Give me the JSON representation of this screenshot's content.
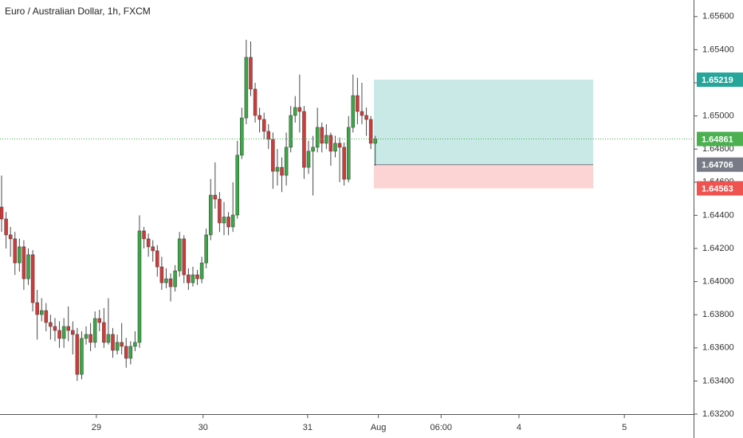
{
  "chart_data": {
    "type": "candlestick",
    "title": "Euro / Australian Dollar, 1h, FXCM",
    "x": [
      0,
      1,
      2,
      3,
      4,
      5,
      6,
      7,
      8,
      9,
      10,
      11,
      12,
      13,
      14,
      15,
      16,
      17,
      18,
      19,
      20,
      21,
      22,
      23,
      24,
      25,
      26,
      27,
      28,
      29,
      30,
      31,
      32,
      33,
      34,
      35,
      36,
      37,
      38,
      39,
      40,
      41,
      42,
      43,
      44,
      45,
      46,
      47,
      48,
      49,
      50,
      51,
      52,
      53,
      54,
      55,
      56,
      57,
      58,
      59,
      60,
      61,
      62,
      63,
      64,
      65,
      66,
      67,
      68,
      69,
      70,
      71,
      72,
      73,
      74,
      75,
      76,
      77,
      78,
      79,
      80,
      81,
      82,
      83,
      84
    ],
    "open": [
      1.6445,
      1.64378,
      1.64282,
      1.64258,
      1.64113,
      1.6421,
      1.64017,
      1.64162,
      1.63873,
      1.63801,
      1.63825,
      1.63753,
      1.63729,
      1.63705,
      1.63657,
      1.63729,
      1.63705,
      1.63681,
      1.6344,
      1.63657,
      1.63681,
      1.63633,
      1.63777,
      1.63753,
      1.63633,
      1.63681,
      1.63585,
      1.63633,
      1.63609,
      1.63537,
      1.63609,
      1.63633,
      1.64306,
      1.64258,
      1.6421,
      1.64186,
      1.64089,
      1.63993,
      1.64017,
      1.63969,
      1.64065,
      1.64258,
      1.64041,
      1.63993,
      1.64041,
      1.64017,
      1.64113,
      1.64282,
      1.64522,
      1.64498,
      1.64354,
      1.6439,
      1.6433,
      1.64402,
      1.64763,
      1.64988,
      1.65354,
      1.65162,
      1.65003,
      1.64979,
      1.64907,
      1.64859,
      1.64666,
      1.6469,
      1.64642,
      1.64811,
      1.65003,
      1.65051,
      1.65027,
      1.6469,
      1.64787,
      1.64811,
      1.64931,
      1.64835,
      1.64883,
      1.64787,
      1.64835,
      1.64811,
      1.64618,
      1.64931,
      1.65123,
      1.65027,
      1.65003,
      1.64979,
      1.64835
    ],
    "high": [
      1.6464,
      1.6442,
      1.6433,
      1.643,
      1.6426,
      1.6425,
      1.642,
      1.6419,
      1.6395,
      1.639,
      1.6387,
      1.638,
      1.6378,
      1.6376,
      1.6378,
      1.6385,
      1.6376,
      1.6372,
      1.637,
      1.6373,
      1.6375,
      1.6382,
      1.6383,
      1.6384,
      1.639,
      1.6372,
      1.6368,
      1.6375,
      1.6366,
      1.6364,
      1.637,
      1.644,
      1.6433,
      1.6429,
      1.6425,
      1.6422,
      1.6415,
      1.6408,
      1.6405,
      1.641,
      1.643,
      1.6428,
      1.6408,
      1.6409,
      1.6407,
      1.6415,
      1.6432,
      1.6462,
      1.6472,
      1.6454,
      1.6448,
      1.6442,
      1.646,
      1.6485,
      1.6505,
      1.6546,
      1.6545,
      1.652,
      1.6505,
      1.6502,
      1.6495,
      1.649,
      1.648,
      1.6475,
      1.649,
      1.6506,
      1.6512,
      1.6525,
      1.6506,
      1.6485,
      1.6488,
      1.6505,
      1.6496,
      1.6495,
      1.649,
      1.6488,
      1.6487,
      1.6484,
      1.65,
      1.6525,
      1.6523,
      1.652,
      1.6505,
      1.65,
      1.6488
    ],
    "low": [
      1.643,
      1.642,
      1.6415,
      1.6404,
      1.6406,
      1.6395,
      1.6398,
      1.6382,
      1.6365,
      1.6376,
      1.637,
      1.6365,
      1.6364,
      1.636,
      1.636,
      1.6364,
      1.6356,
      1.634,
      1.6341,
      1.6362,
      1.6358,
      1.636,
      1.637,
      1.636,
      1.6362,
      1.6354,
      1.6356,
      1.6356,
      1.6348,
      1.635,
      1.6358,
      1.636,
      1.642,
      1.6415,
      1.6412,
      1.6403,
      1.6395,
      1.6396,
      1.6388,
      1.6394,
      1.6403,
      1.6399,
      1.6395,
      1.6397,
      1.6398,
      1.6399,
      1.6408,
      1.6425,
      1.6444,
      1.643,
      1.6428,
      1.6428,
      1.643,
      1.6438,
      1.6474,
      1.6495,
      1.6512,
      1.6496,
      1.649,
      1.6486,
      1.648,
      1.6456,
      1.6458,
      1.6454,
      1.6458,
      1.6478,
      1.6496,
      1.649,
      1.6462,
      1.6465,
      1.6452,
      1.6478,
      1.6478,
      1.648,
      1.647,
      1.6475,
      1.646,
      1.6458,
      1.646,
      1.649,
      1.6495,
      1.6495,
      1.6488,
      1.648,
      1.647
    ],
    "close": [
      1.64378,
      1.64282,
      1.64258,
      1.64113,
      1.6421,
      1.64017,
      1.64162,
      1.63873,
      1.63801,
      1.63825,
      1.63753,
      1.63729,
      1.63705,
      1.63657,
      1.63729,
      1.63705,
      1.63681,
      1.6344,
      1.63657,
      1.63681,
      1.63633,
      1.63777,
      1.63753,
      1.63633,
      1.63681,
      1.63585,
      1.63633,
      1.63609,
      1.63537,
      1.63609,
      1.63633,
      1.64306,
      1.64258,
      1.6421,
      1.64186,
      1.64089,
      1.63993,
      1.64017,
      1.63969,
      1.64065,
      1.64258,
      1.64041,
      1.63993,
      1.64041,
      1.64017,
      1.64113,
      1.64282,
      1.64522,
      1.64498,
      1.64354,
      1.6439,
      1.6433,
      1.64402,
      1.64763,
      1.64988,
      1.65354,
      1.65162,
      1.65003,
      1.64979,
      1.64907,
      1.64859,
      1.64666,
      1.6469,
      1.64642,
      1.64811,
      1.65003,
      1.65051,
      1.65027,
      1.6469,
      1.64787,
      1.64811,
      1.64931,
      1.64835,
      1.64883,
      1.64787,
      1.64835,
      1.64811,
      1.64618,
      1.64931,
      1.65123,
      1.65027,
      1.65003,
      1.64979,
      1.64835,
      1.64861
    ],
    "up_color": "#3aa845",
    "down_color": "#d23a3a",
    "wick_color": "#4a4a4a",
    "last_price_color": "#4caf50",
    "xlim": [
      -0.36,
      155.56
    ],
    "xticks": [
      {
        "value": 21.3,
        "label": "29"
      },
      {
        "value": 45.3,
        "label": "30"
      },
      {
        "value": 68.8,
        "label": "31"
      },
      {
        "value": 84.7,
        "label": "Aug"
      },
      {
        "value": 98.8,
        "label": "06:00"
      },
      {
        "value": 116.3,
        "label": "4"
      },
      {
        "value": 140,
        "label": "5"
      }
    ],
    "ylim": [
      1.632,
      1.657
    ],
    "yticks": [
      {
        "value": 1.632,
        "label": "1.63200"
      },
      {
        "value": 1.634,
        "label": "1.63400"
      },
      {
        "value": 1.636,
        "label": "1.63600"
      },
      {
        "value": 1.638,
        "label": "1.63800"
      },
      {
        "value": 1.64,
        "label": "1.64000"
      },
      {
        "value": 1.642,
        "label": "1.64200"
      },
      {
        "value": 1.644,
        "label": "1.64400"
      },
      {
        "value": 1.646,
        "label": "1.64600"
      },
      {
        "value": 1.648,
        "label": "1.64800"
      },
      {
        "value": 1.65,
        "label": "1.65000"
      },
      {
        "value": 1.652,
        "label": "1.65200"
      },
      {
        "value": 1.654,
        "label": "1.65400"
      },
      {
        "value": 1.656,
        "label": "1.65600"
      }
    ],
    "position": {
      "entry": 1.64706,
      "target": 1.65219,
      "stop": 1.64563,
      "start": 83.7,
      "end": 133,
      "target_color": "#26a69a",
      "stop_color": "#ef5350",
      "entry_color": "#787b86"
    }
  }
}
